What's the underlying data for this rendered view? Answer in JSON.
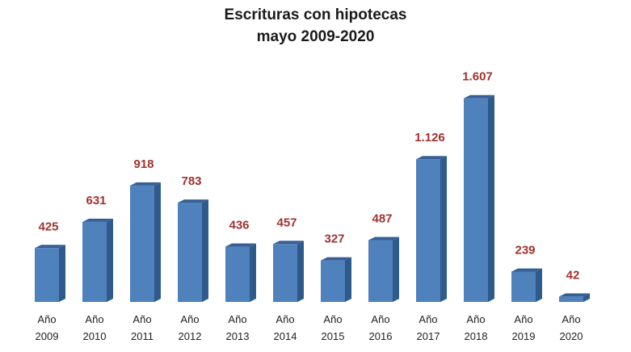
{
  "chart_data": {
    "type": "bar",
    "title_line1": "Escrituras con hipotecas",
    "title_line2": "mayo 2009-2020",
    "categories": [
      [
        "Año",
        "2009"
      ],
      [
        "Año",
        "2010"
      ],
      [
        "Año",
        "2011"
      ],
      [
        "Año",
        "2012"
      ],
      [
        "Año",
        "2013"
      ],
      [
        "Año",
        "2014"
      ],
      [
        "Año",
        "2015"
      ],
      [
        "Año",
        "2016"
      ],
      [
        "Año",
        "2017"
      ],
      [
        "Año",
        "2018"
      ],
      [
        "Año",
        "2019"
      ],
      [
        "Año",
        "2020"
      ]
    ],
    "values": [
      425,
      631,
      918,
      783,
      436,
      457,
      327,
      487,
      1126,
      1607,
      239,
      42
    ],
    "value_labels": [
      "425",
      "631",
      "918",
      "783",
      "436",
      "457",
      "327",
      "487",
      "1.126",
      "1.607",
      "239",
      "42"
    ],
    "ylim": [
      0,
      1607
    ],
    "grid": false,
    "legend": false,
    "colors": {
      "bar_front": "#4f81bd",
      "bar_side": "#2e5a8c",
      "bar_top": "#375f94",
      "value_label": "#a0322e"
    }
  }
}
